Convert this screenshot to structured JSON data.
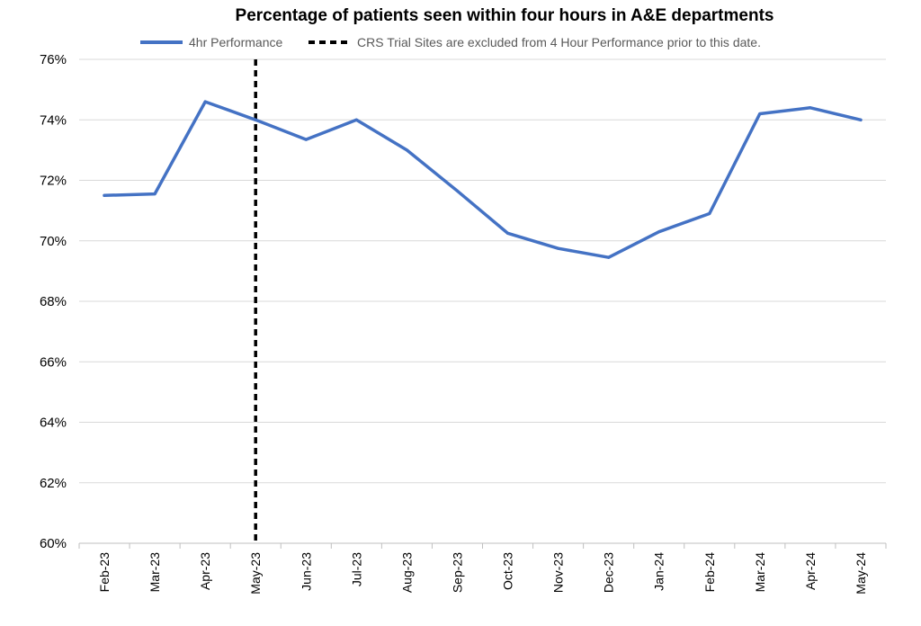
{
  "chart_data": {
    "type": "line",
    "title": "Percentage of patients seen within four hours in A&E departments",
    "xlabel": "",
    "ylabel": "",
    "categories": [
      "Feb-23",
      "Mar-23",
      "Apr-23",
      "May-23",
      "Jun-23",
      "Jul-23",
      "Aug-23",
      "Sep-23",
      "Oct-23",
      "Nov-23",
      "Dec-23",
      "Jan-24",
      "Feb-24",
      "Mar-24",
      "Apr-24",
      "May-24"
    ],
    "series": [
      {
        "name": "4hr Performance",
        "color": "#4472C4",
        "values": [
          71.5,
          71.55,
          74.6,
          74.0,
          73.35,
          74.0,
          73.0,
          71.65,
          70.25,
          69.75,
          69.45,
          70.3,
          70.9,
          74.2,
          74.4,
          74.0
        ]
      }
    ],
    "reference_line": {
      "name": "CRS Trial Sites are excluded from 4 Hour Performance prior to this date.",
      "at_category": "May-23",
      "color": "#000000",
      "style": "dashed"
    },
    "ylim": [
      60,
      76
    ],
    "yticks": [
      "60%",
      "62%",
      "64%",
      "66%",
      "68%",
      "70%",
      "72%",
      "74%",
      "76%"
    ],
    "ytick_values": [
      60,
      62,
      64,
      66,
      68,
      70,
      72,
      74,
      76
    ],
    "grid": "horizontal",
    "legend_position": "top"
  }
}
